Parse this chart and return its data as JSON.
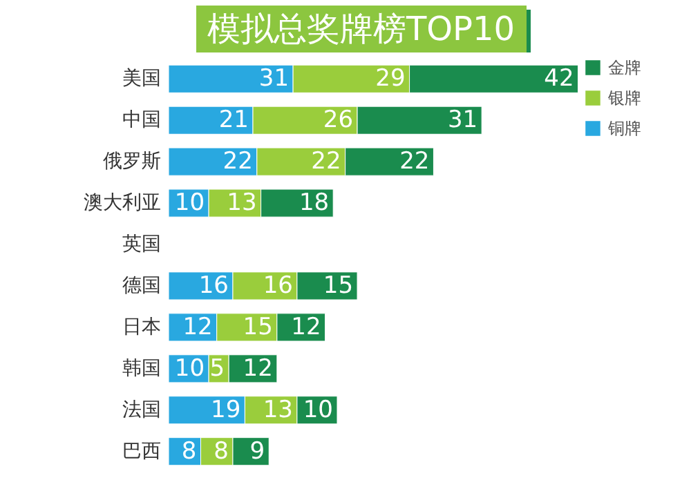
{
  "chart_data": {
    "type": "bar",
    "orientation": "horizontal",
    "stacked": true,
    "data_labels": true,
    "legend": "right",
    "title": "模拟总奖牌榜TOP10",
    "categories": [
      "美国",
      "中国",
      "俄罗斯",
      "澳大利亚",
      "英国",
      "德国",
      "日本",
      "韩国",
      "法国",
      "巴西"
    ],
    "series": [
      {
        "name": "铜牌",
        "color": "#29a8e0",
        "values": [
          31,
          21,
          22,
          10,
          null,
          16,
          12,
          10,
          19,
          8
        ]
      },
      {
        "name": "银牌",
        "color": "#9acd3c",
        "values": [
          29,
          26,
          22,
          13,
          null,
          16,
          15,
          5,
          13,
          8
        ]
      },
      {
        "name": "金牌",
        "color": "#1a8c4e",
        "values": [
          42,
          31,
          22,
          18,
          null,
          15,
          12,
          12,
          10,
          9
        ]
      }
    ]
  }
}
